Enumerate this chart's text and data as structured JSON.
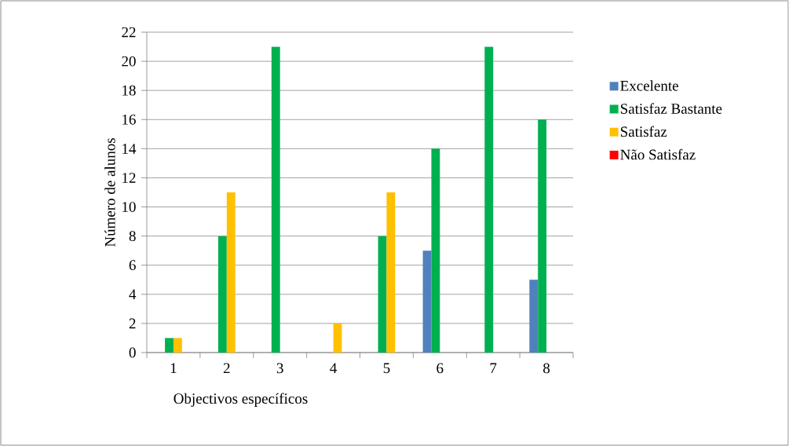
{
  "chart_data": {
    "type": "bar",
    "xlabel": "Objectivos  específicos",
    "ylabel": "Número de alunos",
    "categories": [
      "1",
      "2",
      "3",
      "4",
      "5",
      "6",
      "7",
      "8"
    ],
    "series": [
      {
        "name": "Excelente",
        "color": "#4f81bd",
        "values": [
          0,
          0,
          0,
          0,
          0,
          7,
          0,
          5
        ]
      },
      {
        "name": "Satisfaz Bastante",
        "color": "#00b050",
        "values": [
          1,
          8,
          21,
          0,
          8,
          14,
          21,
          16
        ]
      },
      {
        "name": "Satisfaz",
        "color": "#ffc000",
        "values": [
          1,
          11,
          0,
          2,
          11,
          0,
          0,
          0
        ]
      },
      {
        "name": "Não Satisfaz",
        "color": "#ff0000",
        "values": [
          0,
          0,
          0,
          0,
          0,
          0,
          0,
          0
        ]
      }
    ],
    "ylim": [
      0,
      22
    ],
    "yticks": [
      0,
      2,
      4,
      6,
      8,
      10,
      12,
      14,
      16,
      18,
      20,
      22
    ],
    "grid": "y",
    "legend": "right"
  }
}
